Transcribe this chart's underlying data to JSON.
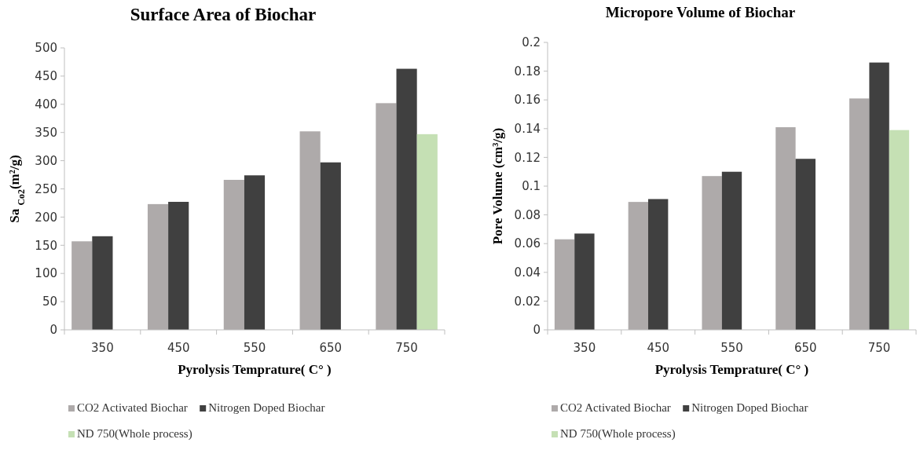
{
  "chart_data": [
    {
      "type": "bar",
      "title": "Surface Area  of Biochar",
      "xlabel": "Pyrolysis Temprature( C° )",
      "ylabel": "Sa $_{Co2}$(m²/g)",
      "categories": [
        "350",
        "450",
        "550",
        "650",
        "750"
      ],
      "series": [
        {
          "name": "CO2 Activated Biochar",
          "color": "#aeaaaa",
          "values": [
            157,
            223,
            266,
            352,
            402
          ]
        },
        {
          "name": "Nitrogen Doped Biochar",
          "color": "#404040",
          "values": [
            166,
            227,
            274,
            297,
            463
          ]
        },
        {
          "name": "ND 750(Whole process)",
          "color": "#c5e0b4",
          "values": [
            null,
            null,
            null,
            null,
            347
          ]
        }
      ],
      "ylim": [
        0,
        500
      ],
      "yticks": [
        0,
        50,
        100,
        150,
        200,
        250,
        300,
        350,
        400,
        450,
        500
      ],
      "grid": false,
      "legend": "bottom"
    },
    {
      "type": "bar",
      "title": "Micropore Volume of Biochar",
      "xlabel": "Pyrolysis Temprature( C° )",
      "ylabel": "Pore Volume (cm³/g)",
      "categories": [
        "350",
        "450",
        "550",
        "650",
        "750"
      ],
      "series": [
        {
          "name": "CO2 Activated Biochar",
          "color": "#aeaaaa",
          "values": [
            0.063,
            0.089,
            0.107,
            0.141,
            0.161
          ]
        },
        {
          "name": "Nitrogen Doped Biochar",
          "color": "#404040",
          "values": [
            0.067,
            0.091,
            0.11,
            0.119,
            0.186
          ]
        },
        {
          "name": "ND 750(Whole process)",
          "color": "#c5e0b4",
          "values": [
            null,
            null,
            null,
            null,
            0.139
          ]
        }
      ],
      "ylim": [
        0,
        0.2
      ],
      "yticks": [
        0,
        0.02,
        0.04,
        0.06,
        0.08,
        0.1,
        0.12,
        0.14,
        0.16,
        0.18,
        0.2
      ],
      "grid": false,
      "legend": "bottom"
    }
  ]
}
